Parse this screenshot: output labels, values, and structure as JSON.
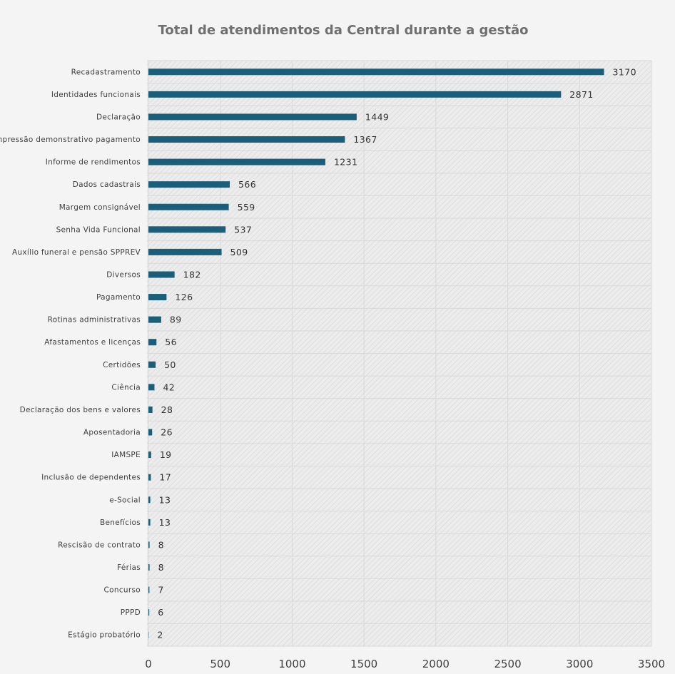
{
  "chart_data": {
    "type": "bar",
    "orientation": "horizontal",
    "title": "Total de atendimentos da Central durante a gestão",
    "xlabel": "",
    "ylabel": "",
    "xlim": [
      0,
      3500
    ],
    "xticks": [
      0,
      500,
      1000,
      1500,
      2000,
      2500,
      3000,
      3500
    ],
    "grid": true,
    "legend": "none",
    "categories": [
      "Recadastramento",
      "Identidades funcionais",
      "Declaração",
      "Impressão demonstrativo pagamento",
      "Informe de rendimentos",
      "Dados cadastrais",
      "Margem consignável",
      "Senha Vida Funcional",
      "Auxílio funeral e pensão SPPREV",
      "Diversos",
      "Pagamento",
      "Rotinas administrativas",
      "Afastamentos e licenças",
      "Certidões",
      "Ciência",
      "Declaração dos bens e valores",
      "Aposentadoria",
      "IAMSPE",
      "Inclusão de dependentes",
      "e-Social",
      "Benefícios",
      "Rescisão de contrato",
      "Férias",
      "Concurso",
      "PPPD",
      "Estágio probatório"
    ],
    "values": [
      3170,
      2871,
      1449,
      1367,
      1231,
      566,
      559,
      537,
      509,
      182,
      126,
      89,
      56,
      50,
      42,
      28,
      26,
      19,
      17,
      13,
      13,
      8,
      8,
      7,
      6,
      2
    ]
  },
  "colors": {
    "bar": "#1a5e7a",
    "background": "#f4f4f4",
    "plot_background": "#ececec",
    "hatch": "#d6d6d6",
    "grid": "#d9d9d9",
    "title": "#6f6f6f"
  }
}
